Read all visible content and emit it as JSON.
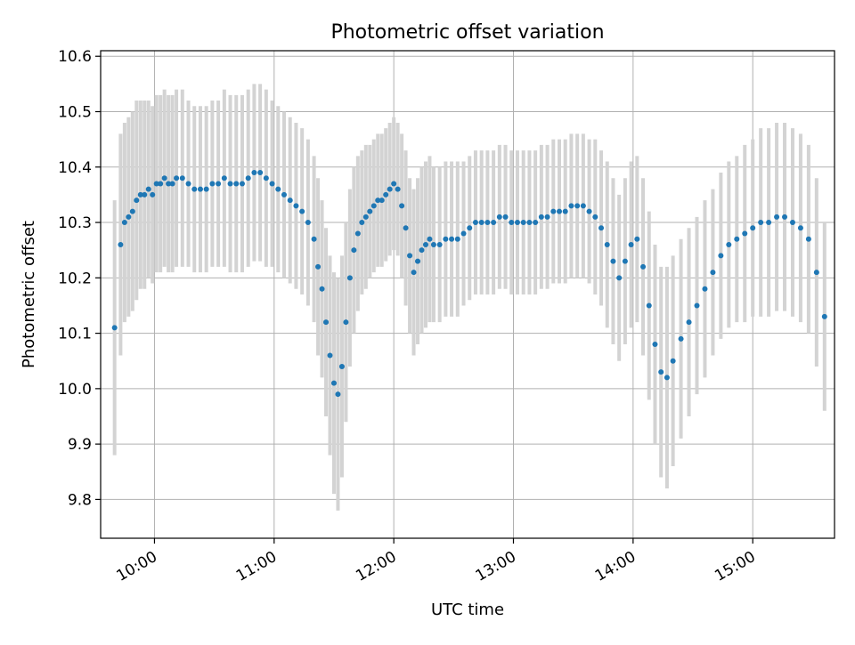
{
  "chart_data": {
    "type": "scatter",
    "title": "Photometric offset variation",
    "xlabel": "UTC time",
    "ylabel": "Photometric offset",
    "xlim": [
      "09:33",
      "15:41"
    ],
    "ylim": [
      9.73,
      10.61
    ],
    "grid": true,
    "x_ticks": [
      "10:00",
      "11:00",
      "12:00",
      "13:00",
      "14:00",
      "15:00"
    ],
    "y_ticks": [
      "9.8",
      "9.9",
      "10.0",
      "10.1",
      "10.2",
      "10.3",
      "10.4",
      "10.5",
      "10.6"
    ],
    "colors": {
      "points": "#1f77b4",
      "error_bars": "#d3d3d3",
      "grid": "#b0b0b0"
    },
    "series": [
      {
        "x": [
          "09:40",
          "09:43",
          "09:45",
          "09:47",
          "09:49",
          "09:51",
          "09:53",
          "09:55",
          "09:57",
          "09:59",
          "10:01",
          "10:03",
          "10:05",
          "10:07",
          "10:09",
          "10:11",
          "10:14",
          "10:17",
          "10:20",
          "10:23",
          "10:26",
          "10:29",
          "10:32",
          "10:35",
          "10:38",
          "10:41",
          "10:44",
          "10:47",
          "10:50",
          "10:53",
          "10:56",
          "10:59",
          "11:02",
          "11:05",
          "11:08",
          "11:11",
          "11:14",
          "11:17",
          "11:20",
          "11:22",
          "11:24",
          "11:26",
          "11:28",
          "11:30",
          "11:32",
          "11:34",
          "11:36",
          "11:38",
          "11:40",
          "11:42",
          "11:44",
          "11:46",
          "11:48",
          "11:50",
          "11:52",
          "11:54",
          "11:56",
          "11:58",
          "12:00",
          "12:02",
          "12:04",
          "12:06",
          "12:08",
          "12:10",
          "12:12",
          "12:14",
          "12:16",
          "12:18",
          "12:20",
          "12:23",
          "12:26",
          "12:29",
          "12:32",
          "12:35",
          "12:38",
          "12:41",
          "12:44",
          "12:47",
          "12:50",
          "12:53",
          "12:56",
          "12:59",
          "13:02",
          "13:05",
          "13:08",
          "13:11",
          "13:14",
          "13:17",
          "13:20",
          "13:23",
          "13:26",
          "13:29",
          "13:32",
          "13:35",
          "13:38",
          "13:41",
          "13:44",
          "13:47",
          "13:50",
          "13:53",
          "13:56",
          "13:59",
          "14:02",
          "14:05",
          "14:08",
          "14:11",
          "14:14",
          "14:17",
          "14:20",
          "14:24",
          "14:28",
          "14:32",
          "14:36",
          "14:40",
          "14:44",
          "14:48",
          "14:52",
          "14:56",
          "15:00",
          "15:04",
          "15:08",
          "15:12",
          "15:16",
          "15:20",
          "15:24",
          "15:28",
          "15:32",
          "15:36"
        ],
        "y": [
          10.11,
          10.26,
          10.3,
          10.31,
          10.32,
          10.34,
          10.35,
          10.35,
          10.36,
          10.35,
          10.37,
          10.37,
          10.38,
          10.37,
          10.37,
          10.38,
          10.38,
          10.37,
          10.36,
          10.36,
          10.36,
          10.37,
          10.37,
          10.38,
          10.37,
          10.37,
          10.37,
          10.38,
          10.39,
          10.39,
          10.38,
          10.37,
          10.36,
          10.35,
          10.34,
          10.33,
          10.32,
          10.3,
          10.27,
          10.22,
          10.18,
          10.12,
          10.06,
          10.01,
          9.99,
          10.04,
          10.12,
          10.2,
          10.25,
          10.28,
          10.3,
          10.31,
          10.32,
          10.33,
          10.34,
          10.34,
          10.35,
          10.36,
          10.37,
          10.36,
          10.33,
          10.29,
          10.24,
          10.21,
          10.23,
          10.25,
          10.26,
          10.27,
          10.26,
          10.26,
          10.27,
          10.27,
          10.27,
          10.28,
          10.29,
          10.3,
          10.3,
          10.3,
          10.3,
          10.31,
          10.31,
          10.3,
          10.3,
          10.3,
          10.3,
          10.3,
          10.31,
          10.31,
          10.32,
          10.32,
          10.32,
          10.33,
          10.33,
          10.33,
          10.32,
          10.31,
          10.29,
          10.26,
          10.23,
          10.2,
          10.23,
          10.26,
          10.27,
          10.22,
          10.15,
          10.08,
          10.03,
          10.02,
          10.05,
          10.09,
          10.12,
          10.15,
          10.18,
          10.21,
          10.24,
          10.26,
          10.27,
          10.28,
          10.29,
          10.3,
          10.3,
          10.31,
          10.31,
          10.3,
          10.29,
          10.27,
          10.21,
          10.13
        ],
        "error": [
          0.23,
          0.2,
          0.18,
          0.18,
          0.18,
          0.18,
          0.17,
          0.17,
          0.16,
          0.16,
          0.16,
          0.16,
          0.16,
          0.16,
          0.16,
          0.16,
          0.16,
          0.15,
          0.15,
          0.15,
          0.15,
          0.15,
          0.15,
          0.16,
          0.16,
          0.16,
          0.16,
          0.16,
          0.16,
          0.16,
          0.16,
          0.15,
          0.15,
          0.15,
          0.15,
          0.15,
          0.15,
          0.15,
          0.15,
          0.16,
          0.16,
          0.17,
          0.18,
          0.2,
          0.21,
          0.2,
          0.18,
          0.16,
          0.15,
          0.14,
          0.13,
          0.13,
          0.12,
          0.12,
          0.12,
          0.12,
          0.12,
          0.12,
          0.12,
          0.12,
          0.13,
          0.14,
          0.14,
          0.15,
          0.15,
          0.15,
          0.15,
          0.15,
          0.14,
          0.14,
          0.14,
          0.14,
          0.14,
          0.13,
          0.13,
          0.13,
          0.13,
          0.13,
          0.13,
          0.13,
          0.13,
          0.13,
          0.13,
          0.13,
          0.13,
          0.13,
          0.13,
          0.13,
          0.13,
          0.13,
          0.13,
          0.13,
          0.13,
          0.13,
          0.13,
          0.14,
          0.14,
          0.15,
          0.15,
          0.15,
          0.15,
          0.15,
          0.15,
          0.16,
          0.17,
          0.18,
          0.19,
          0.2,
          0.19,
          0.18,
          0.17,
          0.16,
          0.16,
          0.15,
          0.15,
          0.15,
          0.15,
          0.16,
          0.16,
          0.17,
          0.17,
          0.17,
          0.17,
          0.17,
          0.17,
          0.17,
          0.17,
          0.17
        ]
      }
    ]
  }
}
